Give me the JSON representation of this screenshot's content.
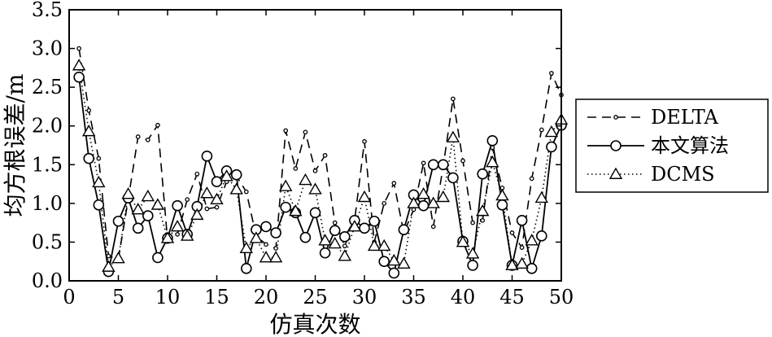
{
  "chart_data": {
    "type": "line",
    "title": "",
    "xlabel": "仿真次数",
    "ylabel": "均方根误差/m",
    "xlim": [
      0,
      50
    ],
    "ylim": [
      0,
      3.5
    ],
    "xticks": [
      0,
      5,
      10,
      15,
      20,
      25,
      30,
      35,
      40,
      45,
      50
    ],
    "yticks": [
      0.0,
      0.5,
      1.0,
      1.5,
      2.0,
      2.5,
      3.0,
      3.5
    ],
    "xtick_labels": [
      "0",
      "5",
      "10",
      "15",
      "20",
      "25",
      "30",
      "35",
      "40",
      "45",
      "50"
    ],
    "ytick_labels": [
      "0.0",
      "0.5",
      "1.0",
      "1.5",
      "2.0",
      "2.5",
      "3.0",
      "3.5"
    ],
    "grid": false,
    "legend_position": "right",
    "x": [
      1,
      2,
      3,
      4,
      5,
      6,
      7,
      8,
      9,
      10,
      11,
      12,
      13,
      14,
      15,
      16,
      17,
      18,
      19,
      20,
      21,
      22,
      23,
      24,
      25,
      26,
      27,
      28,
      29,
      30,
      31,
      32,
      33,
      34,
      35,
      36,
      37,
      38,
      39,
      40,
      41,
      42,
      43,
      44,
      45,
      46,
      47,
      48,
      49,
      50
    ],
    "series": [
      {
        "name": "DELTA",
        "line_style": "dashed",
        "marker": "dot",
        "values": [
          3.0,
          2.2,
          1.58,
          0.32,
          0.28,
          1.05,
          1.86,
          1.82,
          2.01,
          0.52,
          0.6,
          1.05,
          1.38,
          0.93,
          0.95,
          1.28,
          1.35,
          1.15,
          0.58,
          0.47,
          0.42,
          1.94,
          1.45,
          1.92,
          1.42,
          1.62,
          0.75,
          0.45,
          0.78,
          1.8,
          0.5,
          1.0,
          1.26,
          0.62,
          0.92,
          1.52,
          0.7,
          1.48,
          2.35,
          1.55,
          0.75,
          0.78,
          1.72,
          1.2,
          0.62,
          0.43,
          1.32,
          1.95,
          2.68,
          2.4
        ]
      },
      {
        "name": "本文算法",
        "line_style": "solid",
        "marker": "circle",
        "values": [
          2.63,
          1.58,
          0.98,
          0.12,
          0.77,
          1.07,
          0.68,
          0.84,
          0.3,
          0.55,
          0.97,
          0.6,
          0.96,
          1.61,
          1.28,
          1.42,
          1.37,
          0.16,
          0.66,
          0.7,
          0.62,
          0.95,
          0.88,
          0.56,
          0.88,
          0.36,
          0.65,
          0.57,
          0.78,
          0.68,
          0.77,
          0.25,
          0.1,
          0.66,
          1.11,
          0.97,
          1.5,
          1.5,
          1.33,
          0.51,
          0.2,
          1.38,
          1.81,
          0.98,
          0.2,
          0.78,
          0.16,
          0.58,
          1.73,
          2.01
        ]
      },
      {
        "name": "DCMS",
        "line_style": "dotted",
        "marker": "triangle",
        "values": [
          2.78,
          1.93,
          1.27,
          0.18,
          0.29,
          1.12,
          0.92,
          1.09,
          0.98,
          0.55,
          0.7,
          0.58,
          0.85,
          1.13,
          1.05,
          1.35,
          1.18,
          0.42,
          0.55,
          0.3,
          0.3,
          1.22,
          0.9,
          1.3,
          1.18,
          0.52,
          0.48,
          0.32,
          0.7,
          1.08,
          0.45,
          0.45,
          0.26,
          0.22,
          1.0,
          1.12,
          1.0,
          1.08,
          1.85,
          0.5,
          0.35,
          0.9,
          1.53,
          1.1,
          0.2,
          0.22,
          0.52,
          1.07,
          1.92,
          2.08
        ]
      }
    ]
  }
}
